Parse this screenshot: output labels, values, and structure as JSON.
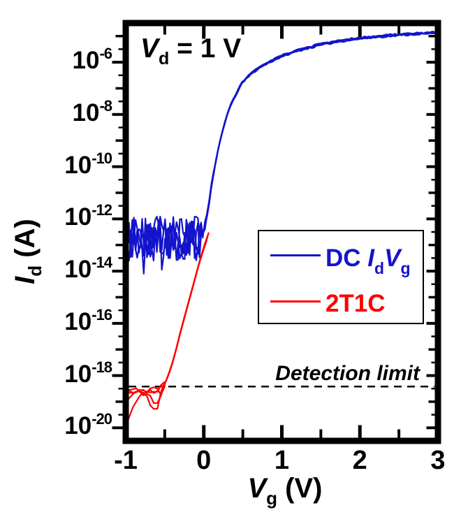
{
  "figure": {
    "background": "#ffffff",
    "annotation": {
      "var": "V",
      "sub": "d",
      "rest": " = 1 V"
    },
    "y_axis": {
      "var": "I",
      "sub": "d",
      "unit": " (A)",
      "tick_base": "10",
      "tick_exponents": [
        -6,
        -8,
        -10,
        -12,
        -14,
        -16,
        -18,
        -20
      ]
    },
    "x_axis": {
      "var": "V",
      "sub": "g",
      "unit": " (V)",
      "tick_labels": [
        "-1",
        "0",
        "1",
        "2",
        "3"
      ],
      "tick_values": [
        -1,
        0,
        1,
        2,
        3
      ]
    },
    "legend": {
      "dc": {
        "prefix": "DC ",
        "sym1": "I",
        "sub1": "d",
        "sym2": "V",
        "sub2": "g",
        "color": "#1414cd"
      },
      "t2t1c": {
        "label": "2T1C",
        "color": "#ff0000"
      }
    },
    "detection_limit_label": "Detection limit"
  },
  "chart_data": {
    "type": "line",
    "title": "",
    "xlabel": "Vg (V)",
    "ylabel": "Id (A)",
    "y_scale": "log",
    "xlim": [
      -1,
      3
    ],
    "ylim_log10": [
      -20.5,
      -4.5
    ],
    "x_major_ticks": [
      -1,
      0,
      1,
      2,
      3
    ],
    "x_minor_step": 0.5,
    "y_labeled_tick_exponents": [
      -6,
      -8,
      -10,
      -12,
      -14,
      -16,
      -18,
      -20
    ],
    "annotation_text": "Vd = 1 V",
    "legend_position": "middle-right",
    "grid": false,
    "detection_limit": {
      "label": "Detection limit",
      "log10_amps": -18.42,
      "line_style": "dashed",
      "color": "#000000"
    },
    "series": [
      {
        "name": "DC IdVg",
        "color": "#1414cd",
        "line_width": 2.2,
        "traces": 4,
        "seed": 11,
        "noise_floor_log10": -12.75,
        "noise_amp_decades": 0.85,
        "noise_clamp_log10": [
          -14.55,
          -11.85
        ],
        "noise_end_vg": -0.02,
        "points_log10": [
          [
            -1.0,
            -12.75
          ],
          [
            -0.05,
            -12.75
          ],
          [
            0.0,
            -12.45
          ],
          [
            0.05,
            -11.7
          ],
          [
            0.1,
            -10.7
          ],
          [
            0.15,
            -9.85
          ],
          [
            0.2,
            -9.1
          ],
          [
            0.25,
            -8.5
          ],
          [
            0.3,
            -8.0
          ],
          [
            0.35,
            -7.6
          ],
          [
            0.4,
            -7.3
          ],
          [
            0.45,
            -7.0
          ],
          [
            0.5,
            -6.75
          ],
          [
            0.6,
            -6.45
          ],
          [
            0.7,
            -6.22
          ],
          [
            0.8,
            -6.05
          ],
          [
            0.9,
            -5.9
          ],
          [
            1.0,
            -5.76
          ],
          [
            1.2,
            -5.55
          ],
          [
            1.5,
            -5.32
          ],
          [
            1.75,
            -5.18
          ],
          [
            2.0,
            -5.08
          ],
          [
            2.25,
            -5.01
          ],
          [
            2.5,
            -4.95
          ],
          [
            2.75,
            -4.9
          ],
          [
            3.0,
            -4.86
          ]
        ]
      },
      {
        "name": "2T1C",
        "color": "#ff0000",
        "line_width": 2.2,
        "seed": 29,
        "floor_noise_amp_decades": 0.12,
        "floor_traces_log10": [
          [
            [
              -1.0,
              -18.55
            ],
            [
              -0.9,
              -18.62
            ],
            [
              -0.8,
              -18.5
            ],
            [
              -0.7,
              -18.62
            ],
            [
              -0.6,
              -18.52
            ],
            [
              -0.5,
              -18.32
            ]
          ],
          [
            [
              -1.0,
              -18.72
            ],
            [
              -0.88,
              -18.55
            ],
            [
              -0.76,
              -18.66
            ],
            [
              -0.64,
              -18.5
            ],
            [
              -0.55,
              -18.62
            ],
            [
              -0.5,
              -18.35
            ]
          ],
          [
            [
              -1.0,
              -18.48
            ],
            [
              -0.9,
              -18.66
            ],
            [
              -0.78,
              -18.55
            ],
            [
              -0.66,
              -18.66
            ],
            [
              -0.56,
              -18.5
            ],
            [
              -0.5,
              -18.3
            ]
          ],
          [
            [
              -1.0,
              -19.05
            ],
            [
              -0.9,
              -18.68
            ],
            [
              -0.8,
              -18.6
            ],
            [
              -0.7,
              -19.0
            ],
            [
              -0.62,
              -19.5
            ],
            [
              -0.54,
              -18.62
            ],
            [
              -0.5,
              -18.35
            ]
          ],
          [
            [
              -1.0,
              -19.85
            ],
            [
              -0.92,
              -19.3
            ],
            [
              -0.84,
              -18.72
            ],
            [
              -0.74,
              -18.6
            ],
            [
              -0.66,
              -18.92
            ],
            [
              -0.58,
              -19.15
            ],
            [
              -0.51,
              -18.45
            ],
            [
              -0.5,
              -18.33
            ]
          ]
        ],
        "rise_points_log10": [
          [
            -0.5,
            -18.32
          ],
          [
            -0.45,
            -17.95
          ],
          [
            -0.4,
            -17.5
          ],
          [
            -0.35,
            -16.95
          ],
          [
            -0.3,
            -16.35
          ],
          [
            -0.25,
            -15.8
          ],
          [
            -0.2,
            -15.25
          ],
          [
            -0.15,
            -14.7
          ],
          [
            -0.1,
            -14.15
          ],
          [
            -0.05,
            -13.6
          ],
          [
            0.0,
            -13.12
          ],
          [
            0.03,
            -12.85
          ],
          [
            0.05,
            -12.68
          ]
        ],
        "trace_dy": [
          0,
          0.1,
          -0.08,
          0.16,
          -0.14
        ],
        "trace_dx": [
          0,
          0.008,
          -0.008,
          0.014,
          -0.012
        ]
      }
    ]
  }
}
